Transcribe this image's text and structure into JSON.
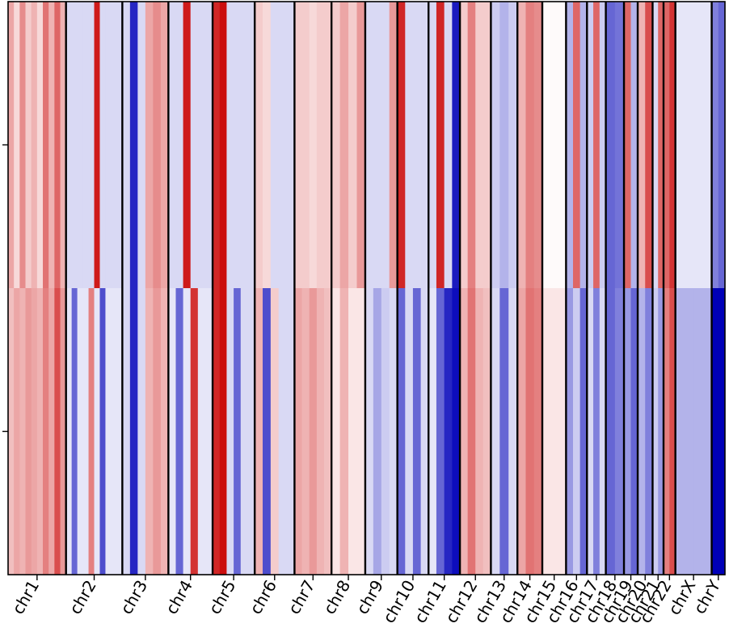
{
  "chart_data": {
    "type": "heatmap",
    "title": "",
    "xlabel": "",
    "ylabel": "",
    "row_count": 2,
    "color_scale": {
      "low": "#0000b8",
      "mid": "#ffffff",
      "high": "#c80000"
    },
    "chromosomes": [
      {
        "label": "chr1",
        "size": 249,
        "rows": [
          [
            0.35,
            0.15,
            0.45,
            0.2,
            0.3,
            0.15,
            0.55,
            0.3,
            0.6,
            0.3
          ],
          [
            0.25,
            0.35,
            0.3,
            0.4,
            0.35,
            0.3,
            0.5,
            0.35,
            0.7,
            0.4
          ]
        ]
      },
      {
        "label": "chr2",
        "size": 242,
        "rows": [
          [
            -0.15,
            -0.15,
            -0.15,
            -0.15,
            -0.15,
            0.9,
            -0.15,
            -0.15,
            -0.15,
            -0.15
          ],
          [
            -0.1,
            -0.6,
            -0.1,
            -0.1,
            0.5,
            -0.1,
            -0.7,
            -0.1,
            -0.1,
            -0.1
          ]
        ]
      },
      {
        "label": "chr3",
        "size": 198,
        "rows": [
          [
            -0.15,
            -0.85,
            -0.15,
            0.35,
            0.45,
            0.35
          ],
          [
            -0.15,
            -0.85,
            -0.15,
            0.3,
            0.4,
            0.3
          ]
        ]
      },
      {
        "label": "chr4",
        "size": 190,
        "rows": [
          [
            -0.15,
            -0.15,
            0.9,
            -0.15,
            -0.15,
            -0.15
          ],
          [
            -0.1,
            -0.6,
            -0.1,
            0.8,
            -0.1,
            -0.1
          ]
        ]
      },
      {
        "label": "chr5",
        "size": 181,
        "rows": [
          [
            0.85,
            0.95,
            -0.15,
            -0.15,
            -0.15,
            -0.15
          ],
          [
            0.85,
            0.95,
            -0.15,
            -0.6,
            -0.15,
            -0.15
          ]
        ]
      },
      {
        "label": "chr6",
        "size": 171,
        "rows": [
          [
            0.2,
            0.15,
            -0.15,
            -0.15,
            -0.15
          ],
          [
            0.3,
            -0.7,
            0.2,
            -0.15,
            -0.15
          ]
        ]
      },
      {
        "label": "chr7",
        "size": 159,
        "rows": [
          [
            0.2,
            0.2,
            0.15,
            0.2,
            0.2
          ],
          [
            0.35,
            0.3,
            0.4,
            0.3,
            0.25
          ]
        ]
      },
      {
        "label": "chr8",
        "size": 145,
        "rows": [
          [
            0.2,
            0.35,
            0.2,
            0.4
          ],
          [
            0.1,
            0.3,
            0.1,
            0.1
          ]
        ]
      },
      {
        "label": "chr9",
        "size": 138,
        "rows": [
          [
            -0.15,
            -0.15,
            -0.15,
            0.4
          ],
          [
            -0.15,
            -0.35,
            -0.2,
            -0.15
          ]
        ]
      },
      {
        "label": "chr10",
        "size": 134,
        "rows": [
          [
            0.85,
            -0.15,
            -0.15,
            -0.15
          ],
          [
            -0.6,
            -0.15,
            -0.6,
            -0.15
          ]
        ]
      },
      {
        "label": "chr11",
        "size": 135,
        "rows": [
          [
            -0.15,
            0.85,
            -0.15,
            -0.9
          ],
          [
            -0.1,
            -0.6,
            -0.85,
            -0.95
          ]
        ]
      },
      {
        "label": "chr12",
        "size": 133,
        "rows": [
          [
            0.2,
            0.5,
            0.2,
            0.2
          ],
          [
            0.3,
            0.55,
            0.3,
            0.25
          ]
        ]
      },
      {
        "label": "chr13",
        "size": 114,
        "rows": [
          [
            -0.2,
            -0.3,
            -0.2
          ],
          [
            -0.15,
            -0.6,
            -0.15
          ]
        ]
      },
      {
        "label": "chr14",
        "size": 107,
        "rows": [
          [
            0.3,
            0.5,
            0.45
          ],
          [
            0.35,
            0.55,
            0.5
          ]
        ]
      },
      {
        "label": "chr15",
        "size": 102,
        "rows": [
          [
            0.02,
            0.02,
            0.02
          ],
          [
            0.1,
            0.1,
            0.1
          ]
        ]
      },
      {
        "label": "chr16",
        "size": 90,
        "rows": [
          [
            -0.3,
            0.6,
            -0.3
          ],
          [
            -0.4,
            -0.2,
            -0.6
          ]
        ]
      },
      {
        "label": "chr17",
        "size": 81,
        "rows": [
          [
            -0.2,
            0.6,
            -0.2
          ],
          [
            -0.15,
            -0.5,
            -0.15
          ]
        ]
      },
      {
        "label": "chr18",
        "size": 78,
        "rows": [
          [
            -0.6,
            -0.55
          ],
          [
            -0.6,
            -0.5
          ]
        ]
      },
      {
        "label": "chr19",
        "size": 59,
        "rows": [
          [
            0.6,
            -0.3
          ],
          [
            -0.4,
            -0.6
          ]
        ]
      },
      {
        "label": "chr20",
        "size": 64,
        "rows": [
          [
            0.3,
            0.7
          ],
          [
            -0.3,
            -0.5
          ]
        ]
      },
      {
        "label": "chr21",
        "size": 47,
        "rows": [
          [
            -0.15,
            0.6
          ],
          [
            -0.2,
            -0.4
          ]
        ]
      },
      {
        "label": "chr22",
        "size": 51,
        "rows": [
          [
            0.6,
            0.8
          ],
          [
            0.5,
            0.7
          ]
        ]
      },
      {
        "label": "chrX",
        "size": 156,
        "rows": [
          [
            -0.1,
            -0.1
          ],
          [
            -0.3,
            -0.3
          ]
        ]
      },
      {
        "label": "chrY",
        "size": 57,
        "rows": [
          [
            -0.5,
            -0.6
          ],
          [
            -1.0,
            -1.0
          ]
        ]
      }
    ]
  }
}
